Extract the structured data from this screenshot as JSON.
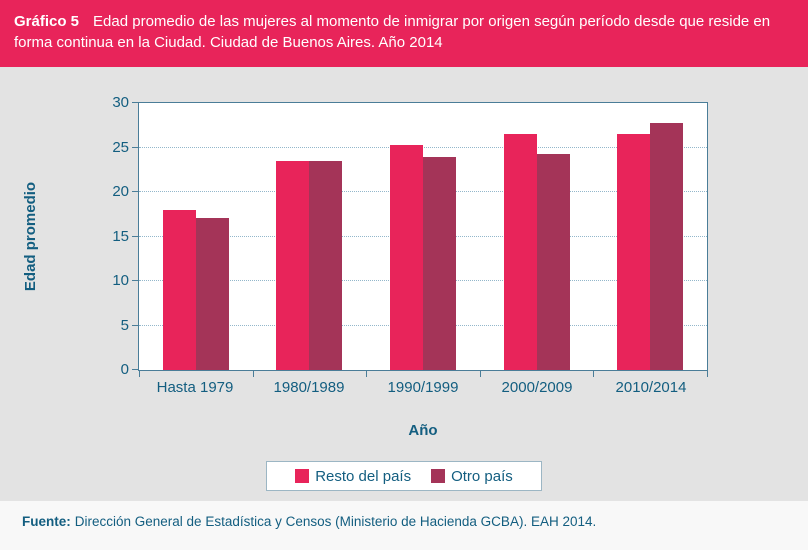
{
  "banner": {
    "label": "Gráfico 5",
    "title": "Edad promedio de las mujeres al momento de inmigrar por origen según período desde que reside en forma continua en la Ciudad. Ciudad de Buenos  Aires. Año 2014",
    "bg_color": "#e8245a",
    "text_color": "#ffffff"
  },
  "chart_data": {
    "type": "bar",
    "categories": [
      "Hasta 1979",
      "1980/1989",
      "1990/1999",
      "2000/2009",
      "2010/2014"
    ],
    "series": [
      {
        "name": "Resto del país",
        "color": "#e8245a",
        "values": [
          18.0,
          23.5,
          25.3,
          26.5,
          26.5
        ]
      },
      {
        "name": "Otro país",
        "color": "#a43458",
        "values": [
          17.1,
          23.5,
          23.9,
          24.3,
          27.7
        ]
      }
    ],
    "title": "",
    "xlabel": "Año",
    "ylabel": "Edad promedio",
    "ylim": [
      0,
      30
    ],
    "ytick_step": 5,
    "grid": "horizontal-dotted",
    "legend_position": "bottom-center",
    "plot_bg": "#ffffff",
    "axis_color": "#4a7d98",
    "gridline_color": "#93b7cb",
    "tick_label_color": "#135e80"
  },
  "footer": {
    "source_label": "Fuente:",
    "source_text": "Dirección General de Estadística y Censos (Ministerio de Hacienda GCBA). EAH 2014."
  }
}
